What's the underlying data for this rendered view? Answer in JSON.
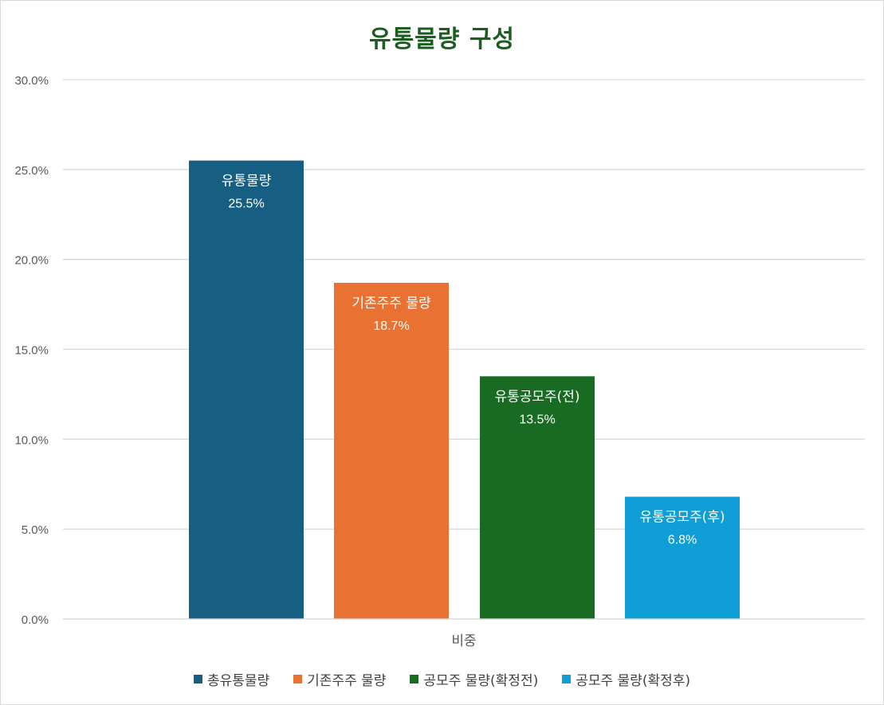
{
  "chart_data": {
    "type": "bar",
    "title": "유통물량 구성",
    "categories": [
      "비중"
    ],
    "ylim": [
      0,
      30
    ],
    "yticks": [
      "0.0%",
      "5.0%",
      "10.0%",
      "15.0%",
      "20.0%",
      "25.0%",
      "30.0%"
    ],
    "grid": true,
    "legend_position": "bottom",
    "series": [
      {
        "name": "총유통물량",
        "value": 25.5,
        "label_name": "유통물량",
        "label_value": "25.5%",
        "color": "#175f82"
      },
      {
        "name": "기존주주 물량",
        "value": 18.7,
        "label_name": "기존주주 물량",
        "label_value": "18.7%",
        "color": "#e97132"
      },
      {
        "name": "공모주 물량(확정전)",
        "value": 13.5,
        "label_name": "유통공모주(전)",
        "label_value": "13.5%",
        "color": "#196b24"
      },
      {
        "name": "공모주 물량(확정후)",
        "value": 6.8,
        "label_name": "유통공모주(후)",
        "label_value": "6.8%",
        "color": "#0f9ed5"
      }
    ]
  }
}
